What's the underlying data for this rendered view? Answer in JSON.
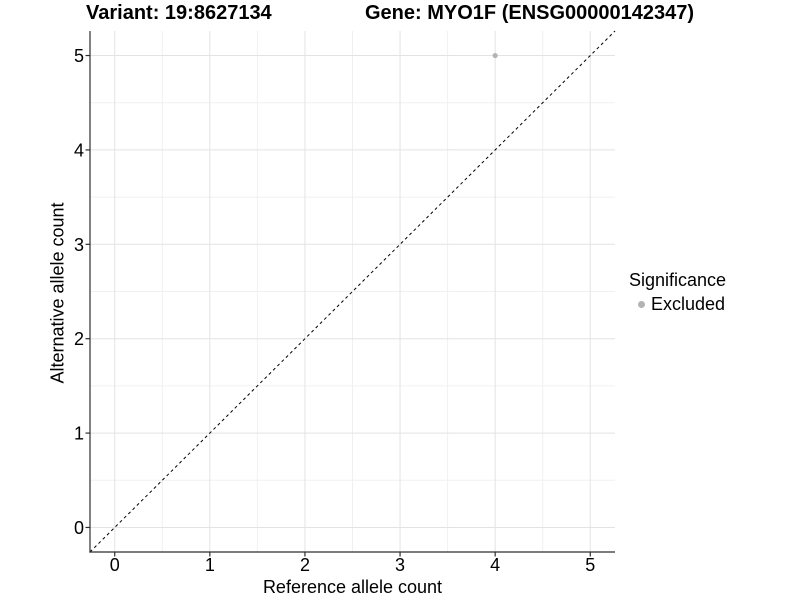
{
  "chart_data": {
    "type": "scatter",
    "title_variant": "Variant: 19:8627134",
    "title_gene": "Gene: MYO1F (ENSG00000142347)",
    "xlabel": "Reference allele count",
    "ylabel": "Alternative allele count",
    "xlim": [
      -0.26,
      5.26
    ],
    "ylim": [
      -0.26,
      5.26
    ],
    "x_ticks": [
      "0",
      "1",
      "2",
      "3",
      "4",
      "5"
    ],
    "y_ticks": [
      "0",
      "1",
      "2",
      "3",
      "4",
      "5"
    ],
    "grid": "major+minor",
    "legend_position": "right",
    "legend_title": "Significance",
    "series": [
      {
        "name": "Excluded",
        "color": "#b3b3b3",
        "points": [
          {
            "x": 4,
            "y": 5
          }
        ]
      }
    ],
    "reference_line": {
      "kind": "identity",
      "dash": true,
      "color": "#000000"
    }
  },
  "colors": {
    "background": "#ffffff",
    "grid_major": "#e3e3e3",
    "grid_minor": "#f0f0f0",
    "axis": "#2e2e2e",
    "text": "#000000"
  }
}
